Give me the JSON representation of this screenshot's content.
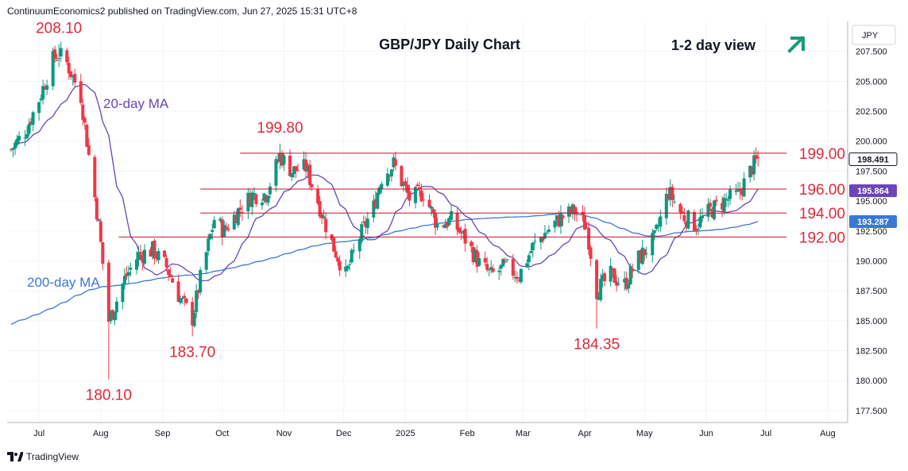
{
  "header": {
    "text": "ContinuumEconomics2 published on TradingView.com, Jun 27, 2025 15:31 UTC+8"
  },
  "footer": {
    "brand": "TradingView"
  },
  "chart_data": {
    "type": "candlestick",
    "title": "GBP/JPY Daily Chart",
    "view": {
      "label": "1-2 day view",
      "icon": "up-right-arrow-icon",
      "color": "#1a9a78"
    },
    "currency": "JPY",
    "ylim": [
      176.5,
      210.0
    ],
    "yticks": [
      177.5,
      180.0,
      182.5,
      185.0,
      187.5,
      190.0,
      192.5,
      195.0,
      197.5,
      200.0,
      202.5,
      205.0,
      207.5
    ],
    "ytick_labels": [
      "177.500",
      "180.000",
      "182.500",
      "185.000",
      "187.500",
      "190.000",
      "192.500",
      "195.000",
      "197.500",
      "200.000",
      "202.500",
      "205.000",
      "207.500"
    ],
    "xticks": [
      {
        "label": "Jul",
        "date": "2024-07-01"
      },
      {
        "label": "Aug",
        "date": "2024-08-01"
      },
      {
        "label": "Sep",
        "date": "2024-09-01"
      },
      {
        "label": "Oct",
        "date": "2024-10-01"
      },
      {
        "label": "Nov",
        "date": "2024-11-01"
      },
      {
        "label": "Dec",
        "date": "2024-12-01"
      },
      {
        "label": "2025",
        "date": "2025-01-01"
      },
      {
        "label": "Feb",
        "date": "2025-02-01"
      },
      {
        "label": "Mar",
        "date": "2025-03-01"
      },
      {
        "label": "Apr",
        "date": "2025-04-01"
      },
      {
        "label": "May",
        "date": "2025-05-01"
      },
      {
        "label": "Jun",
        "date": "2025-06-01"
      },
      {
        "label": "Jul",
        "date": "2025-07-01"
      },
      {
        "label": "Aug",
        "date": "2025-08-01"
      }
    ],
    "x_range": [
      "2024-06-15",
      "2025-08-11"
    ],
    "price_badges": [
      {
        "value": 198.491,
        "label": "198.491",
        "color": "#ffffff",
        "text_color": "#131722",
        "border": "#131722"
      },
      {
        "value": 195.864,
        "label": "195.864",
        "color": "#6a44b8",
        "text_color": "#ffffff"
      },
      {
        "value": 193.287,
        "label": "193.287",
        "color": "#3a78d6",
        "text_color": "#ffffff"
      }
    ],
    "levels": [
      {
        "value": 199.0,
        "label": "199.00",
        "start": "2024-10-10"
      },
      {
        "value": 196.0,
        "label": "196.00",
        "start": "2024-09-20"
      },
      {
        "value": 194.0,
        "label": "194.00",
        "start": "2024-09-20"
      },
      {
        "value": 192.0,
        "label": "192.00",
        "start": "2024-08-10"
      }
    ],
    "annotations": [
      {
        "label": "208.10",
        "date": "2024-07-11",
        "value": 208.1,
        "pos": "above"
      },
      {
        "label": "199.80",
        "date": "2024-10-30",
        "value": 199.8,
        "pos": "above"
      },
      {
        "label": "180.10",
        "date": "2024-08-05",
        "value": 180.1,
        "pos": "below"
      },
      {
        "label": "183.70",
        "date": "2024-09-16",
        "value": 183.7,
        "pos": "below"
      },
      {
        "label": "184.35",
        "date": "2025-04-07",
        "value": 184.35,
        "pos": "below"
      }
    ],
    "ma_labels": [
      {
        "name": "20-day MA",
        "color": "#6a44b8"
      },
      {
        "name": "200-day MA",
        "color": "#3a78d6"
      }
    ],
    "colors": {
      "up": "#089981",
      "down": "#f23645",
      "level_line": "#c8102e",
      "text_red": "#e0283a"
    },
    "waypoints": [
      [
        "2024-06-17",
        199.3
      ],
      [
        "2024-06-24",
        200.8
      ],
      [
        "2024-07-01",
        203.5
      ],
      [
        "2024-07-08",
        206.8
      ],
      [
        "2024-07-11",
        207.3
      ],
      [
        "2024-07-15",
        206.5
      ],
      [
        "2024-07-22",
        203.8
      ],
      [
        "2024-07-26",
        198.8
      ],
      [
        "2024-07-31",
        193.0
      ],
      [
        "2024-08-05",
        185.0
      ],
      [
        "2024-08-07",
        185.8
      ],
      [
        "2024-08-13",
        188.5
      ],
      [
        "2024-08-20",
        190.5
      ],
      [
        "2024-08-27",
        190.9
      ],
      [
        "2024-09-03",
        189.5
      ],
      [
        "2024-09-10",
        186.8
      ],
      [
        "2024-09-16",
        185.2
      ],
      [
        "2024-09-20",
        188.5
      ],
      [
        "2024-09-27",
        193.5
      ],
      [
        "2024-10-02",
        192.5
      ],
      [
        "2024-10-09",
        194.2
      ],
      [
        "2024-10-16",
        195.5
      ],
      [
        "2024-10-23",
        195.6
      ],
      [
        "2024-10-30",
        198.8
      ],
      [
        "2024-11-05",
        197.5
      ],
      [
        "2024-11-12",
        197.8
      ],
      [
        "2024-11-18",
        195.0
      ],
      [
        "2024-11-25",
        191.5
      ],
      [
        "2024-12-02",
        188.8
      ],
      [
        "2024-12-09",
        192.0
      ],
      [
        "2024-12-16",
        194.5
      ],
      [
        "2024-12-20",
        197.0
      ],
      [
        "2024-12-26",
        198.1
      ],
      [
        "2025-01-03",
        195.2
      ],
      [
        "2025-01-10",
        195.7
      ],
      [
        "2025-01-17",
        193.0
      ],
      [
        "2025-01-24",
        193.4
      ],
      [
        "2025-01-31",
        191.8
      ],
      [
        "2025-02-07",
        189.8
      ],
      [
        "2025-02-13",
        188.8
      ],
      [
        "2025-02-20",
        189.5
      ],
      [
        "2025-02-27",
        188.8
      ],
      [
        "2025-03-06",
        191.2
      ],
      [
        "2025-03-13",
        192.5
      ],
      [
        "2025-03-20",
        193.6
      ],
      [
        "2025-03-27",
        194.2
      ],
      [
        "2025-04-02",
        192.8
      ],
      [
        "2025-04-07",
        187.5
      ],
      [
        "2025-04-14",
        188.8
      ],
      [
        "2025-04-21",
        188.0
      ],
      [
        "2025-04-28",
        190.2
      ],
      [
        "2025-05-06",
        191.8
      ],
      [
        "2025-05-13",
        195.8
      ],
      [
        "2025-05-20",
        193.8
      ],
      [
        "2025-05-27",
        193.0
      ],
      [
        "2025-06-03",
        194.2
      ],
      [
        "2025-06-10",
        195.0
      ],
      [
        "2025-06-17",
        195.5
      ],
      [
        "2025-06-20",
        196.5
      ],
      [
        "2025-06-24",
        197.8
      ],
      [
        "2025-06-27",
        198.5
      ]
    ]
  }
}
